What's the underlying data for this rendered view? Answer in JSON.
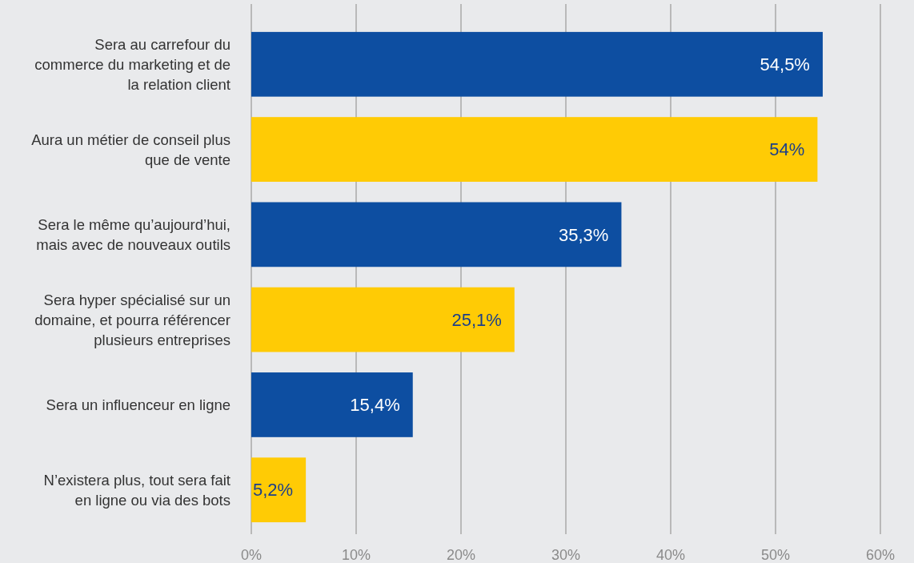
{
  "chart_data": {
    "type": "bar",
    "orientation": "horizontal",
    "categories": [
      "Sera au carrefour du commerce du marketing et de la relation client",
      "Aura un métier de conseil plus que de vente",
      "Sera le même qu’aujourd’hui, mais avec de nouveaux outils",
      "Sera hyper spécialisé sur un domaine, et pourra référencer plusieurs entreprises",
      "Sera un influenceur en ligne",
      "N’existera plus, tout sera fait en ligne ou via des bots"
    ],
    "values": [
      54.5,
      54,
      35.3,
      25.1,
      15.4,
      5.2
    ],
    "colors": [
      "#0d4ea1",
      "#ffcb05",
      "#0d4ea1",
      "#ffcb05",
      "#0d4ea1",
      "#ffcb05"
    ],
    "value_labels": [
      "54,5%",
      "54%",
      "35,3%",
      "25,1%",
      "15,4%",
      "5,2%"
    ],
    "xlim": [
      0,
      60
    ],
    "xticks": [
      {
        "value": 0,
        "label": "0%"
      },
      {
        "value": 10,
        "label": "10%"
      },
      {
        "value": 20,
        "label": "20%"
      },
      {
        "value": 30,
        "label": "30%"
      },
      {
        "value": 40,
        "label": "40%"
      },
      {
        "value": 50,
        "label": "50%"
      },
      {
        "value": 60,
        "label": "60%"
      }
    ],
    "grid": "x"
  }
}
